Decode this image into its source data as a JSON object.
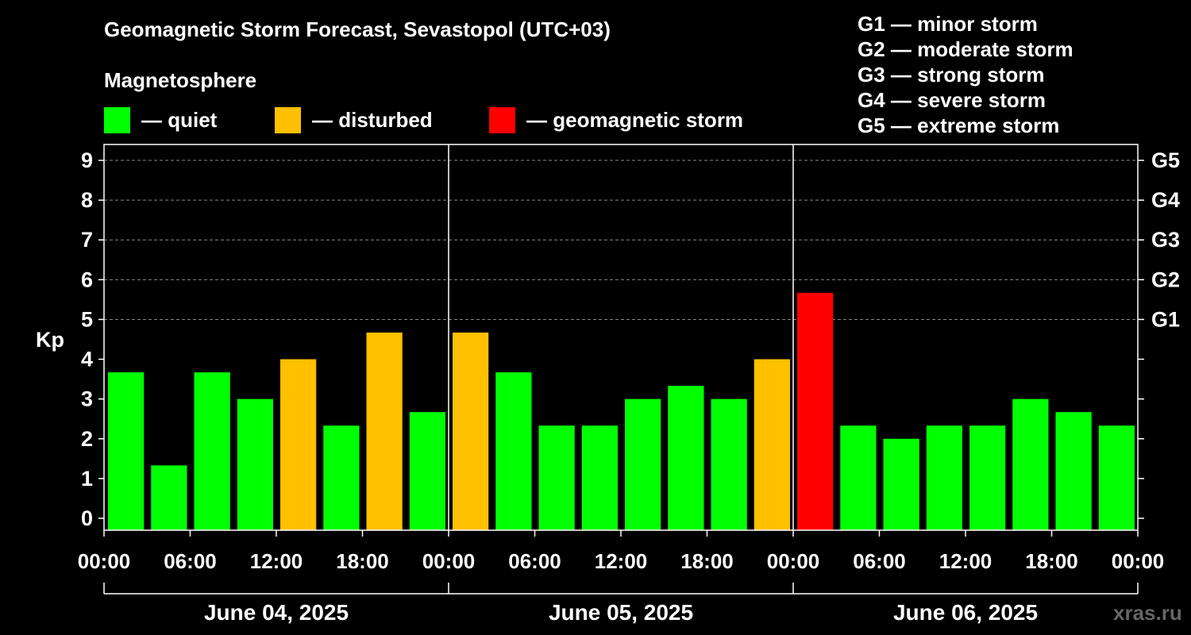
{
  "title": "Geomagnetic Storm Forecast, Sevastopol (UTC+03)",
  "magnetosphere_label": "Magnetosphere",
  "legend": [
    {
      "color": "#00ff00",
      "label": "— quiet"
    },
    {
      "color": "#ffc000",
      "label": "— disturbed"
    },
    {
      "color": "#ff0000",
      "label": "— geomagnetic storm"
    }
  ],
  "g_scale": [
    {
      "code": "G1",
      "desc": "— minor storm"
    },
    {
      "code": "G2",
      "desc": "— moderate storm"
    },
    {
      "code": "G3",
      "desc": "— strong storm"
    },
    {
      "code": "G4",
      "desc": "— severe storm"
    },
    {
      "code": "G5",
      "desc": "— extreme storm"
    }
  ],
  "watermark": "xras.ru",
  "chart_data": {
    "type": "bar",
    "ylabel": "Kp",
    "ylim": [
      -0.3,
      9.4
    ],
    "y_ticks": [
      "0",
      "1",
      "2",
      "3",
      "4",
      "5",
      "6",
      "7",
      "8",
      "9"
    ],
    "right_axis_labels": [
      {
        "kp": 5,
        "label": "G1"
      },
      {
        "kp": 6,
        "label": "G2"
      },
      {
        "kp": 7,
        "label": "G3"
      },
      {
        "kp": 8,
        "label": "G4"
      },
      {
        "kp": 9,
        "label": "G5"
      }
    ],
    "grid": "dashed horizontal at Kp 5-9",
    "x_tick_labels": [
      "00:00",
      "06:00",
      "12:00",
      "18:00",
      "00:00",
      "06:00",
      "12:00",
      "18:00",
      "00:00",
      "06:00",
      "12:00",
      "18:00",
      "00:00"
    ],
    "days": [
      "June 04, 2025",
      "June 05, 2025",
      "June 06, 2025"
    ],
    "bars_per_day": 8,
    "values": [
      3.67,
      1.33,
      3.67,
      3.0,
      4.0,
      2.33,
      4.67,
      2.67,
      4.67,
      3.67,
      2.33,
      2.33,
      3.0,
      3.33,
      3.0,
      4.0,
      5.67,
      2.33,
      2.0,
      2.33,
      2.33,
      3.0,
      2.67,
      2.33
    ],
    "levels": [
      "quiet",
      "quiet",
      "quiet",
      "quiet",
      "disturbed",
      "quiet",
      "disturbed",
      "quiet",
      "disturbed",
      "quiet",
      "quiet",
      "quiet",
      "quiet",
      "quiet",
      "quiet",
      "disturbed",
      "storm",
      "quiet",
      "quiet",
      "quiet",
      "quiet",
      "quiet",
      "quiet",
      "quiet"
    ],
    "level_colors": {
      "quiet": "#00ff00",
      "disturbed": "#ffc000",
      "storm": "#ff0000"
    }
  }
}
